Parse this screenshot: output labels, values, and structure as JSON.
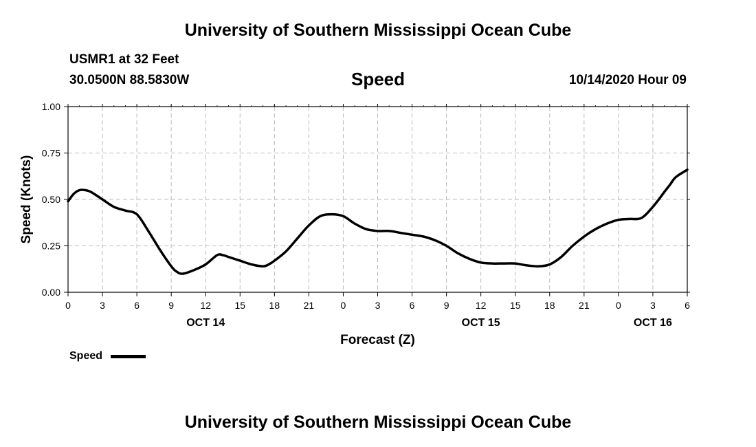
{
  "page": {
    "title_top": "University of Southern Mississippi Ocean Cube",
    "title_bottom": "University of Southern Mississippi Ocean Cube",
    "station": "USMR1 at 32 Feet",
    "location": "30.0500N 88.5830W",
    "variable": "Speed",
    "timestamp": "10/14/2020 Hour 09",
    "legend_label": "Speed"
  },
  "chart_data": {
    "type": "line",
    "title": "Speed",
    "xlabel": "Forecast (Z)",
    "ylabel": "Speed (Knots)",
    "ylim": [
      0,
      1
    ],
    "xlim": [
      0,
      54
    ],
    "grid": true,
    "legend": "bottom-left",
    "x_ticks": [
      0,
      3,
      6,
      9,
      12,
      15,
      18,
      21,
      24,
      27,
      30,
      33,
      36,
      39,
      42,
      45,
      48,
      51,
      54
    ],
    "x_tick_labels": [
      "0",
      "3",
      "6",
      "9",
      "12",
      "15",
      "18",
      "21",
      "0",
      "3",
      "6",
      "9",
      "12",
      "15",
      "18",
      "21",
      "0",
      "3",
      "6"
    ],
    "date_labels": [
      {
        "at": 12,
        "label": "OCT 14"
      },
      {
        "at": 36,
        "label": "OCT 15"
      },
      {
        "at": 51,
        "label": "OCT 16"
      }
    ],
    "y_ticks": [
      0,
      0.25,
      0.5,
      0.75,
      1.0
    ],
    "y_tick_labels": [
      "0.00",
      "0.25",
      "0.50",
      "0.75",
      "1.00"
    ],
    "series": [
      {
        "name": "Speed",
        "color": "#000000",
        "x": [
          0,
          0.5,
          1,
          1.5,
          2,
          3,
          4,
          5,
          6,
          7,
          8,
          9,
          9.5,
          10,
          11,
          12,
          13,
          13.5,
          14,
          15,
          16,
          17,
          17.5,
          18,
          19,
          20,
          21,
          22,
          23,
          24,
          25,
          26,
          27,
          28,
          29,
          30,
          31,
          32,
          33,
          34,
          35,
          36,
          37,
          38,
          39,
          40,
          41,
          42,
          43,
          44,
          45,
          46,
          47,
          48,
          49,
          50,
          51,
          52,
          52.5,
          53,
          54
        ],
        "y": [
          0.49,
          0.53,
          0.55,
          0.55,
          0.54,
          0.5,
          0.46,
          0.44,
          0.42,
          0.33,
          0.23,
          0.14,
          0.11,
          0.1,
          0.12,
          0.15,
          0.2,
          0.2,
          0.19,
          0.17,
          0.15,
          0.14,
          0.15,
          0.17,
          0.22,
          0.29,
          0.36,
          0.41,
          0.42,
          0.41,
          0.37,
          0.34,
          0.33,
          0.33,
          0.32,
          0.31,
          0.3,
          0.28,
          0.25,
          0.21,
          0.18,
          0.16,
          0.155,
          0.155,
          0.155,
          0.145,
          0.14,
          0.15,
          0.19,
          0.25,
          0.3,
          0.34,
          0.37,
          0.39,
          0.395,
          0.4,
          0.46,
          0.54,
          0.58,
          0.62,
          0.66
        ]
      }
    ]
  }
}
